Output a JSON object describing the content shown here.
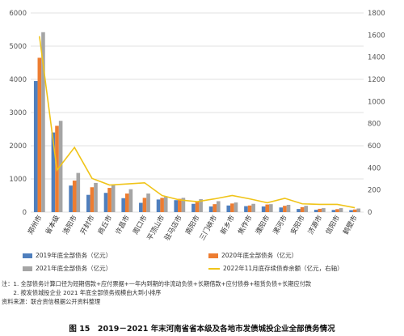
{
  "chart_data": {
    "type": "bar",
    "categories": [
      "郑州市",
      "省本级",
      "洛阳市",
      "开封市",
      "商丘市",
      "许昌市",
      "周口市",
      "平顶山市",
      "驻马店市",
      "南阳市",
      "三门峡市",
      "新乡市",
      "焦作市",
      "濮阳市",
      "漯河市",
      "安阳市",
      "济源市",
      "信阳市",
      "鹤壁市"
    ],
    "series": [
      {
        "name": "2019年底全部债务（亿元）",
        "axis": "left",
        "color": "#4f7fbd",
        "values": [
          3950,
          2400,
          800,
          520,
          580,
          420,
          280,
          380,
          360,
          250,
          170,
          200,
          180,
          170,
          140,
          95,
          70,
          65,
          60
        ]
      },
      {
        "name": "2020年底全部债务（亿元）",
        "axis": "left",
        "color": "#ed7d31",
        "values": [
          4650,
          2600,
          950,
          750,
          730,
          560,
          430,
          430,
          400,
          330,
          240,
          260,
          200,
          230,
          190,
          150,
          100,
          90,
          80
        ]
      },
      {
        "name": "2021年底全部债务（亿元）",
        "axis": "left",
        "color": "#a5a5a5",
        "values": [
          5420,
          2750,
          1180,
          880,
          820,
          690,
          560,
          460,
          430,
          390,
          330,
          290,
          250,
          240,
          220,
          190,
          120,
          120,
          110
        ]
      },
      {
        "name": "2022年11月底存续债券余额（亿元，右轴）",
        "axis": "right",
        "type": "line",
        "color": "#f0c419",
        "values": [
          1590,
          380,
          585,
          305,
          245,
          255,
          265,
          150,
          110,
          95,
          120,
          150,
          120,
          85,
          125,
          75,
          70,
          70,
          40
        ]
      }
    ],
    "y_left": {
      "min": 0,
      "max": 6000,
      "ticks": [
        0,
        1000,
        2000,
        3000,
        4000,
        5000,
        6000
      ]
    },
    "y_right": {
      "min": 0,
      "max": 1800,
      "ticks": [
        0,
        200,
        400,
        600,
        800,
        1000,
        1200,
        1400,
        1600,
        1800
      ]
    },
    "grid": true,
    "legend_position": "bottom"
  },
  "colors": {
    "bar_2019": "#4f7fbd",
    "bar_2020": "#ed7d31",
    "bar_2021": "#a5a5a5",
    "line_2022": "#f0c419"
  },
  "notes": [
    "注：1. 全部债务计算口径为短期借款+应付票据+一年内到期的非流动负债+长期借款+应付债券+租赁负债+长期应付款",
    "　　2. 按发债城投企业 2021 年底全部债务规模由大到小排序",
    "资料来源：联合资信根据公开资料整理"
  ],
  "caption": "图 15　2019－2021 年末河南省省本级及各地市发债城投企业全部债务情况"
}
